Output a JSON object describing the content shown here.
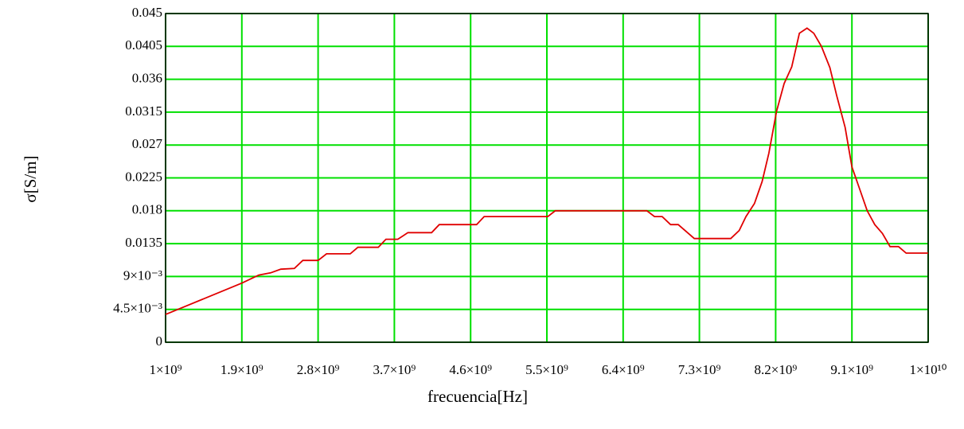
{
  "chart_data": {
    "type": "line",
    "xlabel": "frecuencia[Hz]",
    "ylabel": "σ[S/m]",
    "color": "#e00000",
    "grid": true,
    "grid_color": "#00e000",
    "xlim": [
      1000000000.0,
      10000000000.0
    ],
    "xticks": [
      {
        "value": 1000000000.0,
        "label": "1×10⁹"
      },
      {
        "value": 1900000000.0,
        "label": "1.9×10⁹"
      },
      {
        "value": 2800000000.0,
        "label": "2.8×10⁹"
      },
      {
        "value": 3700000000.0,
        "label": "3.7×10⁹"
      },
      {
        "value": 4600000000.0,
        "label": "4.6×10⁹"
      },
      {
        "value": 5500000000.0,
        "label": "5.5×10⁹"
      },
      {
        "value": 6400000000.0,
        "label": "6.4×10⁹"
      },
      {
        "value": 7300000000.0,
        "label": "7.3×10⁹"
      },
      {
        "value": 8200000000.0,
        "label": "8.2×10⁹"
      },
      {
        "value": 9100000000.0,
        "label": "9.1×10⁹"
      },
      {
        "value": 10000000000.0,
        "label": "1×10¹⁰"
      }
    ],
    "ylim": [
      0,
      0.045
    ],
    "yticks": [
      0,
      {
        "value": 0.0045,
        "label": "4.5×10⁻³"
      },
      {
        "value": 0.009,
        "label": "9×10⁻³"
      },
      0.0135,
      0.018,
      0.0225,
      0.027,
      0.0315,
      0.036,
      0.0405,
      0.045
    ],
    "x": [
      1000000000.0,
      1900000000.0,
      2100000000.0,
      2240000000.0,
      2360000000.0,
      2520000000.0,
      2620000000.0,
      2800000000.0,
      2900000000.0,
      3180000000.0,
      3270000000.0,
      3510000000.0,
      3600000000.0,
      3740000000.0,
      3860000000.0,
      4140000000.0,
      4230000000.0,
      4670000000.0,
      4760000000.0,
      5510000000.0,
      5600000000.0,
      6680000000.0,
      6770000000.0,
      6860000000.0,
      6960000000.0,
      7050000000.0,
      7240000000.0,
      7670000000.0,
      7770000000.0,
      7850000000.0,
      7950000000.0,
      8040000000.0,
      8120000000.0,
      8210000000.0,
      8300000000.0,
      8390000000.0,
      8480000000.0,
      8570000000.0,
      8650000000.0,
      8740000000.0,
      8840000000.0,
      8920000000.0,
      9020000000.0,
      9100000000.0,
      9200000000.0,
      9280000000.0,
      9370000000.0,
      9460000000.0,
      9550000000.0,
      9650000000.0,
      9740000000.0,
      10000000000.0
    ],
    "values": [
      0.0038,
      0.0081,
      0.0092,
      0.0095,
      0.01,
      0.0101,
      0.0112,
      0.0112,
      0.0121,
      0.0121,
      0.013,
      0.013,
      0.0141,
      0.0141,
      0.015,
      0.015,
      0.0161,
      0.0161,
      0.0172,
      0.0172,
      0.018,
      0.018,
      0.0172,
      0.0172,
      0.0161,
      0.0161,
      0.0142,
      0.0142,
      0.0153,
      0.0172,
      0.019,
      0.022,
      0.0259,
      0.0316,
      0.0354,
      0.0377,
      0.0423,
      0.043,
      0.0423,
      0.0405,
      0.0376,
      0.0338,
      0.0294,
      0.024,
      0.0207,
      0.018,
      0.0161,
      0.0149,
      0.0131,
      0.0131,
      0.0122,
      0.0122
    ]
  }
}
